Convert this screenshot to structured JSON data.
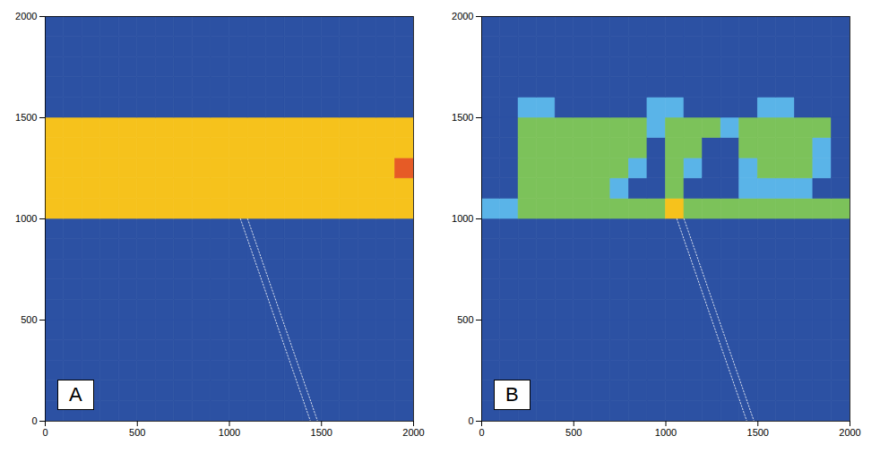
{
  "chart_data": [
    {
      "type": "heatmap",
      "panel_label": "A",
      "xlim": [
        0,
        2000
      ],
      "ylim": [
        0,
        2000
      ],
      "xticks": [
        0,
        500,
        1000,
        1500,
        2000
      ],
      "yticks": [
        0,
        500,
        1000,
        1500,
        2000
      ],
      "zlim": [
        0,
        1
      ],
      "xbins": [
        0,
        100,
        200,
        300,
        400,
        500,
        600,
        700,
        800,
        900,
        1000,
        1100,
        1200,
        1300,
        1400,
        1500,
        1600,
        1700,
        1800,
        1900,
        2000
      ],
      "ybins": [
        0,
        100,
        200,
        300,
        400,
        500,
        600,
        700,
        800,
        900,
        1000,
        1100,
        1200,
        1300,
        1400,
        1500,
        1600,
        1700,
        1800,
        1900,
        2000
      ],
      "z": [
        [
          0,
          0,
          0,
          0,
          0,
          0,
          0,
          0,
          0,
          0,
          0,
          0,
          0,
          0,
          0,
          0,
          0,
          0,
          0,
          0
        ],
        [
          0,
          0,
          0,
          0,
          0,
          0,
          0,
          0,
          0,
          0,
          0,
          0,
          0,
          0,
          0,
          0,
          0,
          0,
          0,
          0
        ],
        [
          0,
          0,
          0,
          0,
          0,
          0,
          0,
          0,
          0,
          0,
          0,
          0,
          0,
          0,
          0,
          0,
          0,
          0,
          0,
          0
        ],
        [
          0,
          0,
          0,
          0,
          0,
          0,
          0,
          0,
          0,
          0,
          0,
          0,
          0,
          0,
          0,
          0,
          0,
          0,
          0,
          0
        ],
        [
          0,
          0,
          0,
          0,
          0,
          0,
          0,
          0,
          0,
          0,
          0,
          0,
          0,
          0,
          0,
          0,
          0,
          0,
          0,
          0
        ],
        [
          0,
          0,
          0,
          0,
          0,
          0,
          0,
          0,
          0,
          0,
          0,
          0,
          0,
          0,
          0,
          0,
          0,
          0,
          0,
          0
        ],
        [
          0,
          0,
          0,
          0,
          0,
          0,
          0,
          0,
          0,
          0,
          0,
          0,
          0,
          0,
          0,
          0,
          0,
          0,
          0,
          0
        ],
        [
          0,
          0,
          0,
          0,
          0,
          0,
          0,
          0,
          0,
          0,
          0,
          0,
          0,
          0,
          0,
          0,
          0,
          0,
          0,
          0
        ],
        [
          0,
          0,
          0,
          0,
          0,
          0,
          0,
          0,
          0,
          0,
          0,
          0,
          0,
          0,
          0,
          0,
          0,
          0,
          0,
          0
        ],
        [
          0,
          0,
          0,
          0,
          0,
          0,
          0,
          0,
          0,
          0,
          0,
          0,
          0,
          0,
          0,
          0,
          0,
          0,
          0,
          0
        ],
        [
          0.8,
          0.8,
          0.8,
          0.8,
          0.8,
          0.8,
          0.8,
          0.8,
          0.8,
          0.8,
          0.8,
          0.8,
          0.8,
          0.8,
          0.8,
          0.8,
          0.8,
          0.8,
          0.8,
          0.8
        ],
        [
          0.8,
          0.8,
          0.8,
          0.8,
          0.8,
          0.8,
          0.8,
          0.8,
          0.8,
          0.8,
          0.8,
          0.8,
          0.8,
          0.8,
          0.8,
          0.8,
          0.8,
          0.8,
          0.8,
          0.8
        ],
        [
          0.8,
          0.8,
          0.8,
          0.8,
          0.8,
          0.8,
          0.8,
          0.8,
          0.8,
          0.8,
          0.8,
          0.8,
          0.8,
          0.8,
          0.8,
          0.8,
          0.8,
          0.8,
          0.8,
          0.95
        ],
        [
          0.8,
          0.8,
          0.8,
          0.8,
          0.8,
          0.8,
          0.8,
          0.8,
          0.8,
          0.8,
          0.8,
          0.8,
          0.8,
          0.8,
          0.8,
          0.8,
          0.8,
          0.8,
          0.8,
          0.8
        ],
        [
          0.8,
          0.8,
          0.8,
          0.8,
          0.8,
          0.8,
          0.8,
          0.8,
          0.8,
          0.8,
          0.8,
          0.8,
          0.8,
          0.8,
          0.8,
          0.8,
          0.8,
          0.8,
          0.8,
          0.8
        ],
        [
          0,
          0,
          0,
          0,
          0,
          0,
          0,
          0,
          0,
          0,
          0,
          0,
          0,
          0,
          0,
          0,
          0,
          0,
          0,
          0
        ],
        [
          0,
          0,
          0,
          0,
          0,
          0,
          0,
          0,
          0,
          0,
          0,
          0,
          0,
          0,
          0,
          0,
          0,
          0,
          0,
          0
        ],
        [
          0,
          0,
          0,
          0,
          0,
          0,
          0,
          0,
          0,
          0,
          0,
          0,
          0,
          0,
          0,
          0,
          0,
          0,
          0,
          0
        ],
        [
          0,
          0,
          0,
          0,
          0,
          0,
          0,
          0,
          0,
          0,
          0,
          0,
          0,
          0,
          0,
          0,
          0,
          0,
          0,
          0
        ],
        [
          0,
          0,
          0,
          0,
          0,
          0,
          0,
          0,
          0,
          0,
          0,
          0,
          0,
          0,
          0,
          0,
          0,
          0,
          0,
          0
        ]
      ],
      "trace": {
        "x": [
          1060,
          1440
        ],
        "y": [
          1000,
          0
        ]
      }
    },
    {
      "type": "heatmap",
      "panel_label": "B",
      "xlim": [
        0,
        2000
      ],
      "ylim": [
        0,
        2000
      ],
      "xticks": [
        0,
        500,
        1000,
        1500,
        2000
      ],
      "yticks": [
        0,
        500,
        1000,
        1500,
        2000
      ],
      "zlim": [
        0,
        1
      ],
      "xbins": [
        0,
        100,
        200,
        300,
        400,
        500,
        600,
        700,
        800,
        900,
        1000,
        1100,
        1200,
        1300,
        1400,
        1500,
        1600,
        1700,
        1800,
        1900,
        2000
      ],
      "ybins": [
        0,
        100,
        200,
        300,
        400,
        500,
        600,
        700,
        800,
        900,
        1000,
        1100,
        1200,
        1300,
        1400,
        1500,
        1600,
        1700,
        1800,
        1900,
        2000
      ],
      "z": [
        [
          0,
          0,
          0,
          0,
          0,
          0,
          0,
          0,
          0,
          0,
          0,
          0,
          0,
          0,
          0,
          0,
          0,
          0,
          0,
          0
        ],
        [
          0,
          0,
          0,
          0,
          0,
          0,
          0,
          0,
          0,
          0,
          0,
          0,
          0,
          0,
          0,
          0,
          0,
          0,
          0,
          0
        ],
        [
          0,
          0,
          0,
          0,
          0,
          0,
          0,
          0,
          0,
          0,
          0,
          0,
          0,
          0,
          0,
          0,
          0,
          0,
          0,
          0
        ],
        [
          0,
          0,
          0,
          0,
          0,
          0,
          0,
          0,
          0,
          0,
          0,
          0,
          0,
          0,
          0,
          0,
          0,
          0,
          0,
          0
        ],
        [
          0,
          0,
          0,
          0,
          0,
          0,
          0,
          0,
          0,
          0,
          0,
          0,
          0,
          0,
          0,
          0,
          0,
          0,
          0,
          0
        ],
        [
          0,
          0,
          0,
          0,
          0,
          0,
          0,
          0,
          0,
          0,
          0,
          0,
          0,
          0,
          0,
          0,
          0,
          0,
          0,
          0
        ],
        [
          0,
          0,
          0,
          0,
          0,
          0,
          0,
          0,
          0,
          0,
          0,
          0,
          0,
          0,
          0,
          0,
          0,
          0,
          0,
          0
        ],
        [
          0,
          0,
          0,
          0,
          0,
          0,
          0,
          0,
          0,
          0,
          0,
          0,
          0,
          0,
          0,
          0,
          0,
          0,
          0,
          0
        ],
        [
          0,
          0,
          0,
          0,
          0,
          0,
          0,
          0,
          0,
          0,
          0,
          0,
          0,
          0,
          0,
          0,
          0,
          0,
          0,
          0
        ],
        [
          0,
          0,
          0,
          0,
          0,
          0,
          0,
          0,
          0,
          0,
          0,
          0,
          0,
          0,
          0,
          0,
          0,
          0,
          0,
          0
        ],
        [
          0.3,
          0.3,
          0.55,
          0.55,
          0.55,
          0.55,
          0.55,
          0.55,
          0.55,
          0.55,
          0.8,
          0.55,
          0.55,
          0.55,
          0.55,
          0.55,
          0.55,
          0.55,
          0.55,
          0.55
        ],
        [
          0,
          0,
          0.55,
          0.55,
          0.55,
          0.55,
          0.55,
          0.3,
          0,
          0,
          0.55,
          0,
          0,
          0,
          0.3,
          0.3,
          0.3,
          0.3,
          0,
          0
        ],
        [
          0,
          0,
          0.55,
          0.55,
          0.55,
          0.55,
          0.55,
          0.55,
          0.3,
          0,
          0.55,
          0.3,
          0,
          0,
          0.3,
          0.55,
          0.55,
          0.55,
          0.3,
          0
        ],
        [
          0,
          0,
          0.55,
          0.55,
          0.55,
          0.55,
          0.55,
          0.55,
          0.55,
          0,
          0.55,
          0.55,
          0,
          0,
          0.55,
          0.55,
          0.55,
          0.55,
          0.3,
          0
        ],
        [
          0,
          0,
          0.55,
          0.55,
          0.55,
          0.55,
          0.55,
          0.55,
          0.55,
          0.3,
          0.55,
          0.55,
          0.55,
          0.3,
          0.55,
          0.55,
          0.55,
          0.55,
          0.55,
          0
        ],
        [
          0,
          0,
          0.3,
          0.3,
          0,
          0,
          0,
          0,
          0,
          0.3,
          0.3,
          0,
          0,
          0,
          0,
          0.3,
          0.3,
          0,
          0,
          0
        ],
        [
          0,
          0,
          0,
          0,
          0,
          0,
          0,
          0,
          0,
          0,
          0,
          0,
          0,
          0,
          0,
          0,
          0,
          0,
          0,
          0
        ],
        [
          0,
          0,
          0,
          0,
          0,
          0,
          0,
          0,
          0,
          0,
          0,
          0,
          0,
          0,
          0,
          0,
          0,
          0,
          0,
          0
        ],
        [
          0,
          0,
          0,
          0,
          0,
          0,
          0,
          0,
          0,
          0,
          0,
          0,
          0,
          0,
          0,
          0,
          0,
          0,
          0,
          0
        ],
        [
          0,
          0,
          0,
          0,
          0,
          0,
          0,
          0,
          0,
          0,
          0,
          0,
          0,
          0,
          0,
          0,
          0,
          0,
          0,
          0
        ]
      ],
      "trace": {
        "x": [
          1060,
          1440
        ],
        "y": [
          1000,
          0
        ]
      }
    }
  ]
}
